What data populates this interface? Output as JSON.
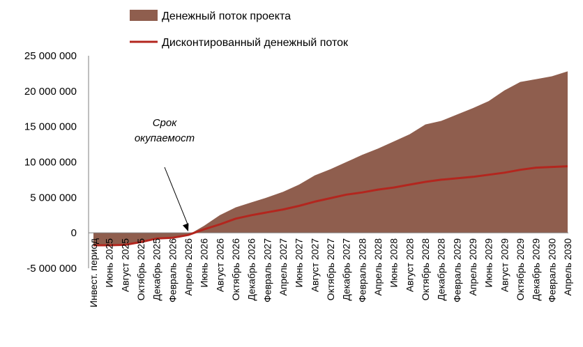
{
  "chart_data": {
    "type": "area",
    "legend": {
      "placement": "top",
      "items": [
        {
          "label": "Денежный поток проекта",
          "style": "area",
          "color": "#8f5e4e"
        },
        {
          "label": "Дисконтированный денежный поток",
          "style": "line",
          "color": "#b3261e"
        }
      ]
    },
    "x": [
      "Инвест. период",
      "Июнь 2025",
      "Август 2025",
      "Октябрь 2025",
      "Декабрь 2025",
      "Февраль 2026",
      "Апрель 2026",
      "Июнь 2026",
      "Август 2026",
      "Октябрь 2026",
      "Декабрь 2026",
      "Февраль 2027",
      "Апрель 2027",
      "Июнь 2027",
      "Август 2027",
      "Октябрь 2027",
      "Декабрь 2027",
      "Февраль 2028",
      "Апрель 2028",
      "Июнь 2028",
      "Август 2028",
      "Октябрь 2028",
      "Декабрь 2028",
      "Февраль 2029",
      "Апрель 2029",
      "Июнь 2029",
      "Август 2029",
      "Октябрь 2029",
      "Декабрь 2029",
      "Февраль 2030",
      "Апрель 2030"
    ],
    "series": [
      {
        "name": "Денежный поток проекта",
        "type": "area",
        "color": "#8f5e4e",
        "values": [
          -1750000,
          -1750000,
          -1750000,
          -1300000,
          -800000,
          -700000,
          -300000,
          1000000,
          2500000,
          3600000,
          4300000,
          5000000,
          5800000,
          6800000,
          8100000,
          9000000,
          10000000,
          11000000,
          11900000,
          12900000,
          13900000,
          15300000,
          15800000,
          16700000,
          17600000,
          18600000,
          20100000,
          21300000,
          21700000,
          22100000,
          22800000
        ]
      },
      {
        "name": "Дисконтированный денежный поток",
        "type": "line",
        "color": "#b3261e",
        "values": [
          -1750000,
          -1750000,
          -1700000,
          -1300000,
          -800000,
          -700000,
          -300000,
          500000,
          1200000,
          2000000,
          2500000,
          2900000,
          3300000,
          3800000,
          4400000,
          4900000,
          5400000,
          5700000,
          6100000,
          6400000,
          6800000,
          7200000,
          7500000,
          7700000,
          7900000,
          8200000,
          8500000,
          8900000,
          9200000,
          9300000,
          9400000
        ]
      }
    ],
    "y_ticks": [
      "25 000 000",
      "20 000 000",
      "15 000 000",
      "10 000 000",
      "5 000 000",
      "0",
      "-5 000 000"
    ],
    "ylim": [
      -5000000,
      25000000
    ],
    "grid": false,
    "annotations": [
      {
        "text_lines": [
          "Срок",
          "окупаемост"
        ],
        "arrow_to_category": "Апрель 2026"
      }
    ]
  }
}
